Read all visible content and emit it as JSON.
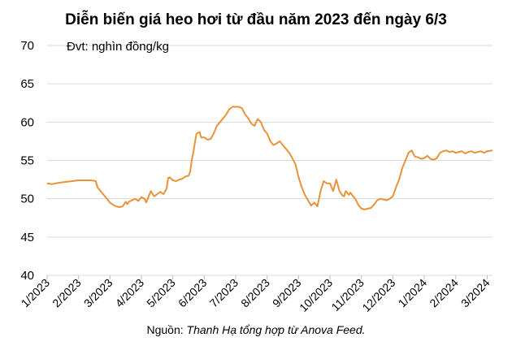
{
  "chart_data": {
    "type": "line",
    "title": "Diễn biến giá heo hơi từ đầu năm 2023 đến ngày 6/3",
    "unit_label": "Đvt: nghìn đồng/kg",
    "source_label": "Nguồn:",
    "source_value": "Thanh Hạ tổng hợp từ Anova Feed.",
    "ylim": [
      40,
      70
    ],
    "yticks": [
      40,
      45,
      50,
      55,
      60,
      65,
      70
    ],
    "xlim": [
      0,
      14.17
    ],
    "x_tick_labels": [
      "1/2023",
      "2/2023",
      "3/2023",
      "4/2023",
      "5/2023",
      "6/2023",
      "7/2023",
      "8/2023",
      "9/2023",
      "10/2023",
      "11/2023",
      "12/2023",
      "1/2024",
      "2/2024",
      "3/2024"
    ],
    "grid": true,
    "line_color": "#e8923a",
    "x": [
      0,
      0.15,
      0.4,
      0.6,
      0.8,
      1.0,
      1.2,
      1.4,
      1.55,
      1.6,
      1.7,
      1.8,
      1.9,
      2.0,
      2.1,
      2.2,
      2.3,
      2.4,
      2.5,
      2.55,
      2.6,
      2.7,
      2.8,
      2.9,
      3.0,
      3.1,
      3.15,
      3.2,
      3.3,
      3.4,
      3.5,
      3.6,
      3.7,
      3.8,
      3.85,
      3.9,
      4.0,
      4.1,
      4.2,
      4.3,
      4.4,
      4.5,
      4.55,
      4.6,
      4.65,
      4.75,
      4.85,
      4.9,
      5.0,
      5.1,
      5.2,
      5.3,
      5.4,
      5.5,
      5.6,
      5.7,
      5.8,
      5.9,
      6.0,
      6.1,
      6.2,
      6.3,
      6.4,
      6.5,
      6.6,
      6.7,
      6.8,
      6.9,
      7.0,
      7.1,
      7.2,
      7.3,
      7.4,
      7.5,
      7.6,
      7.7,
      7.8,
      7.9,
      8.0,
      8.1,
      8.2,
      8.3,
      8.4,
      8.5,
      8.6,
      8.7,
      8.8,
      8.9,
      9.0,
      9.1,
      9.2,
      9.3,
      9.4,
      9.45,
      9.5,
      9.6,
      9.65,
      9.7,
      9.8,
      9.9,
      10.0,
      10.1,
      10.2,
      10.3,
      10.4,
      10.5,
      10.6,
      10.7,
      10.8,
      10.9,
      11.0,
      11.1,
      11.2,
      11.3,
      11.4,
      11.5,
      11.6,
      11.7,
      11.8,
      11.9,
      12.0,
      12.1,
      12.2,
      12.3,
      12.4,
      12.5,
      12.6,
      12.7,
      12.8,
      12.9,
      13.0,
      13.1,
      13.2,
      13.3,
      13.4,
      13.5,
      13.6,
      13.7,
      13.8,
      13.9,
      14.0,
      14.17
    ],
    "y": [
      52.0,
      51.9,
      52.1,
      52.2,
      52.3,
      52.4,
      52.4,
      52.4,
      52.3,
      51.5,
      51.0,
      50.5,
      50.0,
      49.5,
      49.2,
      49.0,
      48.9,
      49.0,
      49.6,
      49.3,
      49.6,
      49.8,
      50.0,
      49.7,
      50.2,
      50.0,
      49.5,
      50.0,
      51.0,
      50.3,
      50.6,
      50.9,
      50.6,
      51.3,
      52.7,
      52.8,
      52.4,
      52.3,
      52.5,
      52.6,
      52.9,
      53.0,
      53.5,
      55.0,
      56.0,
      58.5,
      58.7,
      58.0,
      58.0,
      57.7,
      57.8,
      58.5,
      59.5,
      60.0,
      60.5,
      61.0,
      61.7,
      62.0,
      62.0,
      62.0,
      61.8,
      61.0,
      60.5,
      59.8,
      59.5,
      60.4,
      60.0,
      59.0,
      58.5,
      57.5,
      57.0,
      57.2,
      57.5,
      57.0,
      56.5,
      56.0,
      55.3,
      54.5,
      52.8,
      51.5,
      50.5,
      49.8,
      49.1,
      49.5,
      49.0,
      51.0,
      52.3,
      52.0,
      52.0,
      51.0,
      52.5,
      51.0,
      50.4,
      50.3,
      51.0,
      50.5,
      50.8,
      50.5,
      50.0,
      49.2,
      48.7,
      48.6,
      48.7,
      48.8,
      49.2,
      49.8,
      50.0,
      49.9,
      49.8,
      50.0,
      50.3,
      51.5,
      52.5,
      54.0,
      55.0,
      56.0,
      56.3,
      55.5,
      55.4,
      55.2,
      55.3,
      55.6,
      55.2,
      55.1,
      55.3,
      56.0,
      56.2,
      56.3,
      56.1,
      56.2,
      56.0,
      56.1,
      56.2,
      55.9,
      56.1,
      56.2,
      56.0,
      56.1,
      56.2,
      56.0,
      56.2,
      56.3
    ]
  }
}
